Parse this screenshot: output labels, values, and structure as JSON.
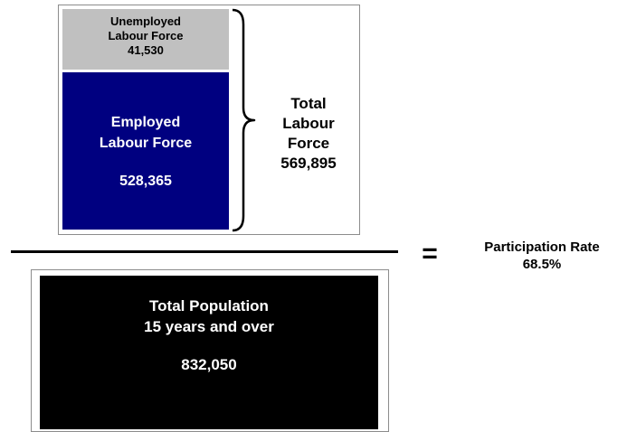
{
  "numerator": {
    "unemployed": {
      "line1": "Unemployed",
      "line2": "Labour Force",
      "value": "41,530",
      "color": "#c0c0c0"
    },
    "employed": {
      "line1": "Employed",
      "line2": "Labour Force",
      "value": "528,365",
      "color": "#000080"
    }
  },
  "total_labour_force": {
    "line1": "Total",
    "line2": "Labour",
    "line3": "Force",
    "value": "569,895"
  },
  "equals_sign": "=",
  "participation": {
    "label": "Participation Rate",
    "value": "68.5%"
  },
  "denominator": {
    "line1": "Total Population",
    "line2": "15 years and over",
    "value": "832,050",
    "color": "#000000"
  }
}
